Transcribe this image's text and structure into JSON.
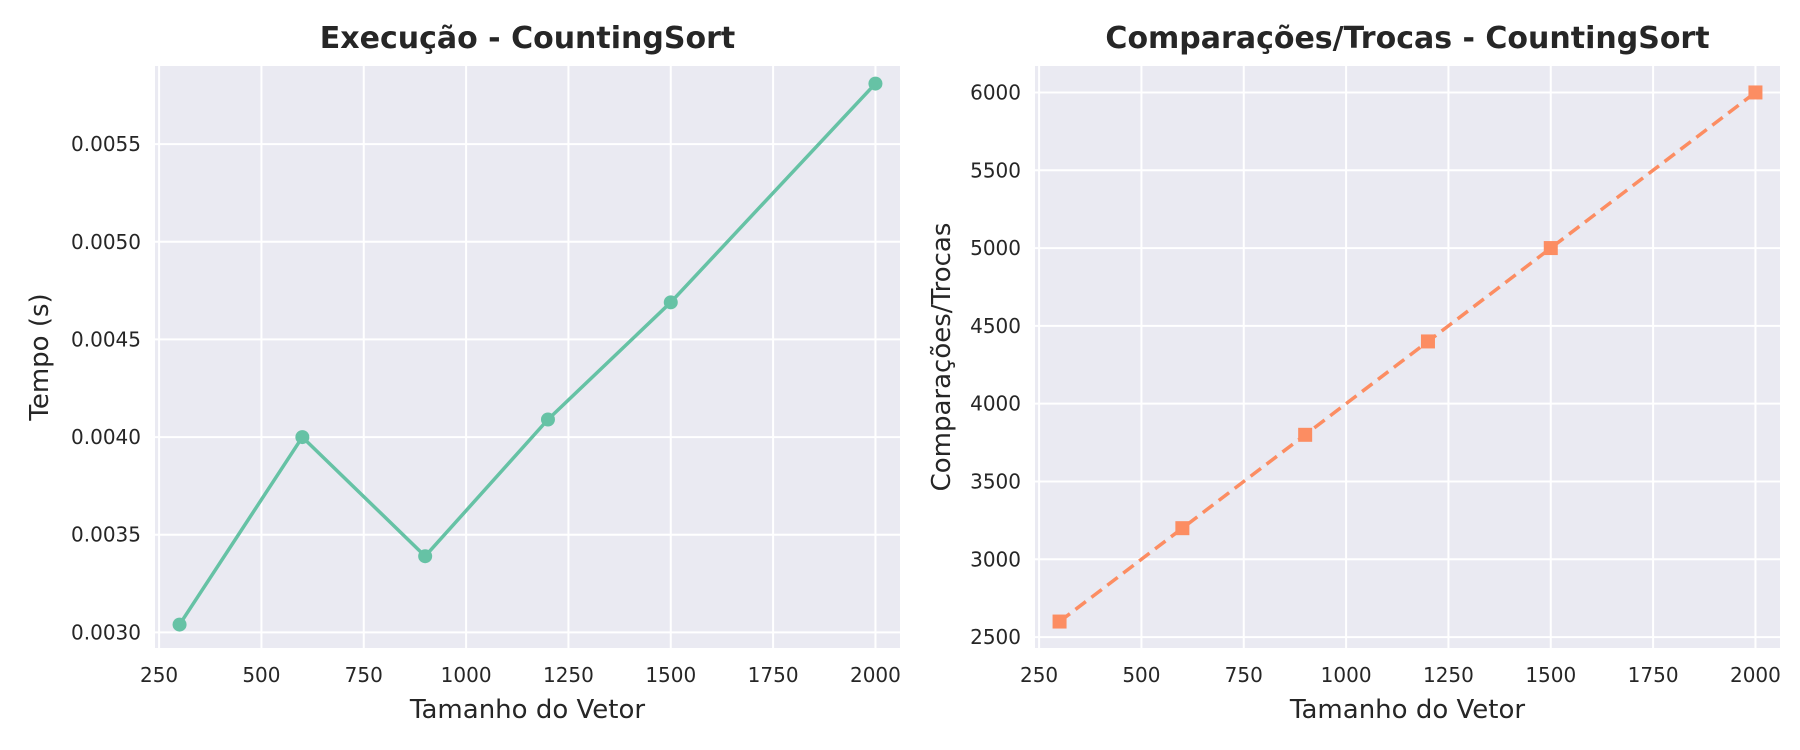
{
  "chart_data": [
    {
      "type": "line",
      "title": "Execução - CountingSort",
      "xlabel": "Tamanho do Vetor",
      "ylabel": "Tempo (s)",
      "x": [
        300,
        600,
        900,
        1200,
        1500,
        2000
      ],
      "series": [
        {
          "values": [
            0.00304,
            0.004,
            0.00339,
            0.00409,
            0.00469,
            0.00581
          ]
        }
      ],
      "xlim": [
        240,
        2060
      ],
      "ylim": [
        0.00292,
        0.0059
      ],
      "xticks": [
        250,
        500,
        750,
        1000,
        1250,
        1500,
        1750,
        2000
      ],
      "xtick_labels": [
        "250",
        "500",
        "750",
        "1000",
        "1250",
        "1500",
        "1750",
        "2000"
      ],
      "yticks": [
        0.003,
        0.0035,
        0.004,
        0.0045,
        0.005,
        0.0055
      ],
      "ytick_labels": [
        "0.0030",
        "0.0035",
        "0.0040",
        "0.0045",
        "0.0050",
        "0.0055"
      ],
      "grid": true,
      "line_style": "solid",
      "marker": "circle",
      "color": "#66c2a5"
    },
    {
      "type": "line",
      "title": "Comparações/Trocas - CountingSort",
      "xlabel": "Tamanho do Vetor",
      "ylabel": "Comparações/Trocas",
      "x": [
        300,
        600,
        900,
        1200,
        1500,
        2000
      ],
      "series": [
        {
          "values": [
            2600,
            3200,
            3800,
            4400,
            5000,
            6000
          ]
        }
      ],
      "xlim": [
        240,
        2060
      ],
      "ylim": [
        2430,
        6170
      ],
      "xticks": [
        250,
        500,
        750,
        1000,
        1250,
        1500,
        1750,
        2000
      ],
      "xtick_labels": [
        "250",
        "500",
        "750",
        "1000",
        "1250",
        "1500",
        "1750",
        "2000"
      ],
      "yticks": [
        2500,
        3000,
        3500,
        4000,
        4500,
        5000,
        5500,
        6000
      ],
      "ytick_labels": [
        "2500",
        "3000",
        "3500",
        "4000",
        "4500",
        "5000",
        "5500",
        "6000"
      ],
      "grid": true,
      "line_style": "dashed",
      "marker": "square",
      "color": "#fc8d62"
    }
  ]
}
